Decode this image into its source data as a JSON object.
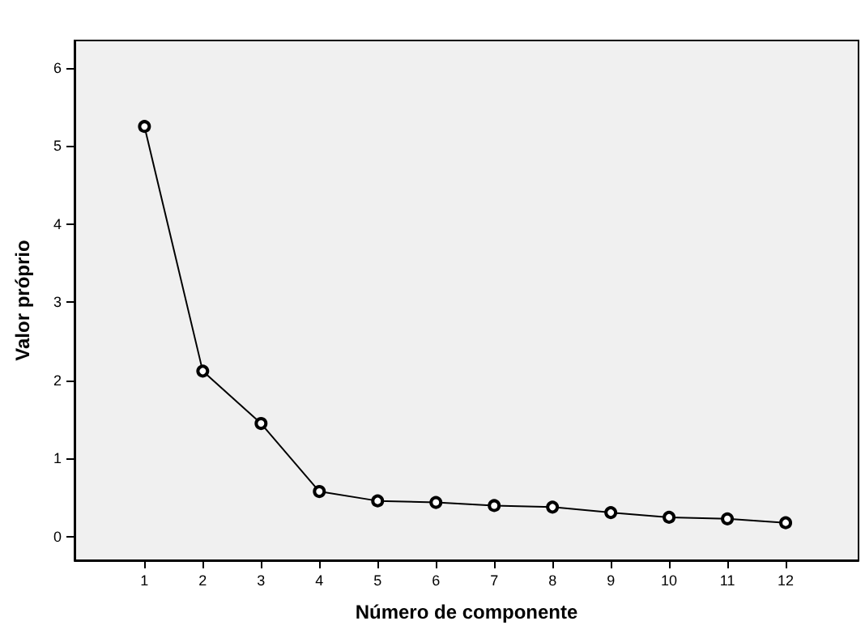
{
  "chart_data": {
    "type": "line",
    "xlabel": "Número de componente",
    "ylabel": "Valor próprio",
    "x": [
      1,
      2,
      3,
      4,
      5,
      6,
      7,
      8,
      9,
      10,
      11,
      12
    ],
    "values": [
      5.25,
      2.12,
      1.45,
      0.58,
      0.46,
      0.44,
      0.4,
      0.38,
      0.31,
      0.25,
      0.23,
      0.18
    ],
    "color": "#000000",
    "marker": "circle",
    "line_style": "solid",
    "grid": false,
    "xlim": [
      -0.2,
      13.25
    ],
    "xticks": [
      1,
      2,
      3,
      4,
      5,
      6,
      7,
      8,
      9,
      10,
      11,
      12
    ],
    "ylim": [
      -0.3,
      6.35
    ],
    "yticks": [
      0,
      1,
      2,
      3,
      4,
      5,
      6
    ]
  }
}
